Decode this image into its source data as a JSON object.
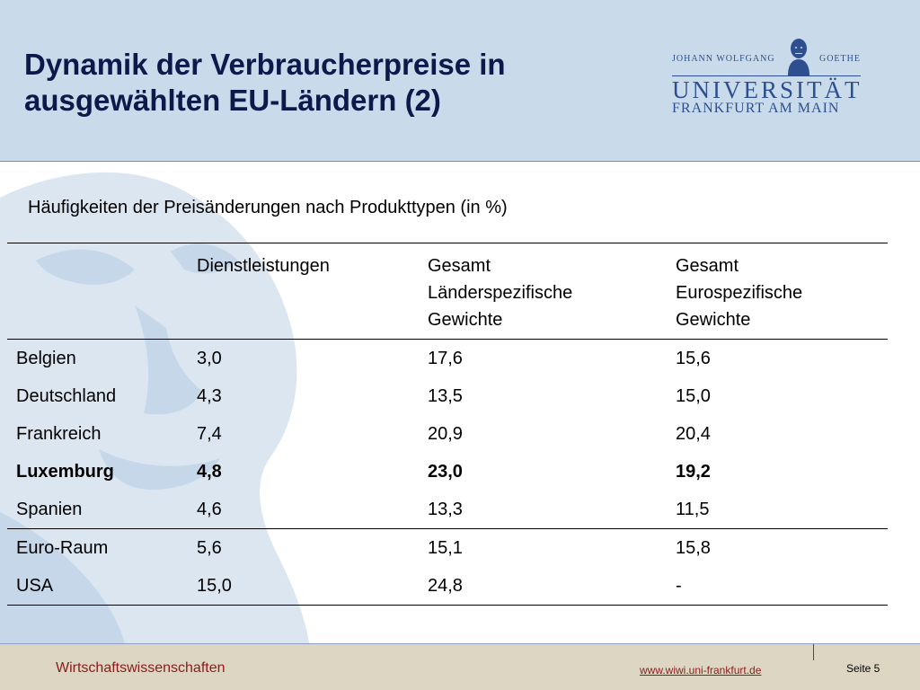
{
  "header": {
    "title_line1": "Dynamik der Verbraucherpreise in",
    "title_line2": "ausgewählten EU-Ländern (2)"
  },
  "logo": {
    "top_left": "JOHANN WOLFGANG",
    "top_right": "GOETHE",
    "name": "UNIVERSITÄT",
    "city": "FRANKFURT AM MAIN",
    "color": "#2d4f8f"
  },
  "subtitle": "Häufigkeiten der Preisänderungen nach Produkttypen (in %)",
  "table": {
    "headers": [
      [
        ""
      ],
      [
        "Dienstleistungen"
      ],
      [
        "Gesamt",
        "Länderspezifische",
        "Gewichte"
      ],
      [
        "Gesamt",
        "Eurospezifische",
        "Gewichte"
      ]
    ],
    "rows": [
      {
        "cells": [
          "Belgien",
          "3,0",
          "17,6",
          "15,6"
        ],
        "bold": false
      },
      {
        "cells": [
          "Deutschland",
          "4,3",
          "13,5",
          "15,0"
        ],
        "bold": false
      },
      {
        "cells": [
          "Frankreich",
          "7,4",
          "20,9",
          "20,4"
        ],
        "bold": false
      },
      {
        "cells": [
          "Luxemburg",
          "4,8",
          "23,0",
          "19,2"
        ],
        "bold": true
      },
      {
        "cells": [
          "Spanien",
          "4,6",
          "13,3",
          "11,5"
        ],
        "bold": false
      },
      {
        "cells": [
          "Euro-Raum",
          "5,6",
          "15,1",
          "15,8"
        ],
        "bold": false
      },
      {
        "cells": [
          "USA",
          "15,0",
          "24,8",
          "-"
        ],
        "bold": false
      }
    ]
  },
  "footer": {
    "department": "Wirtschaftswissenschaften",
    "link": "www.wiwi.uni-frankfurt.de",
    "page": "Seite 5"
  },
  "colors": {
    "header_bg": "#c9dbea",
    "title": "#0b1a4a",
    "footer_bg": "#dcd6c2",
    "footer_text": "#8b1c1c",
    "watermark": "#dbe6f1"
  }
}
